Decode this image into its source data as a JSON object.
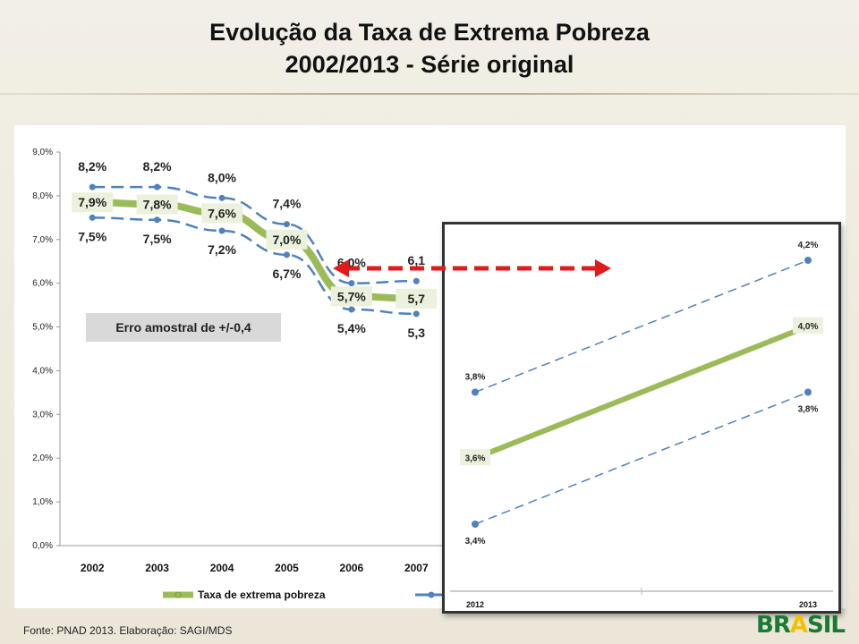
{
  "slide": {
    "title_line1": "Evolução da Taxa de Extrema Pobreza",
    "title_line2": "2002/2013 - Série original",
    "source": "Fonte: PNAD 2013. Elaboração: SAGI/MDS",
    "logo_text": "BRASIL"
  },
  "colors": {
    "main_series": "#9bbb59",
    "bounds_series": "#4f81bd",
    "arrow": "#e01b1b",
    "label_box": "#ebf1dd"
  },
  "chart_data": [
    {
      "type": "line",
      "x": [
        "2002",
        "2003",
        "2004",
        "2005",
        "2006",
        "2007"
      ],
      "ylim": [
        0,
        9
      ],
      "yticks": [
        "0,0%",
        "1,0%",
        "2,0%",
        "3,0%",
        "4,0%",
        "5,0%",
        "6,0%",
        "7,0%",
        "8,0%",
        "9,0%"
      ],
      "grid": false,
      "legend_position": "bottom",
      "series": [
        {
          "name": "Taxa de extrema pobreza",
          "values": [
            7.85,
            7.8,
            7.6,
            7.0,
            5.7,
            5.65
          ],
          "labels": [
            "7,9%",
            "7,8%",
            "7,6%",
            "7,0%",
            "5,7%",
            "5,7"
          ]
        },
        {
          "values": [
            8.2,
            8.2,
            7.95,
            7.35,
            6.0,
            6.05
          ],
          "labels": [
            "8,2%",
            "8,2%",
            "8,0%",
            "7,4%",
            "6,0%",
            "6,1"
          ]
        },
        {
          "values": [
            7.5,
            7.45,
            7.2,
            6.65,
            5.4,
            5.3
          ],
          "labels": [
            "7,5%",
            "7,5%",
            "7,2%",
            "6,7%",
            "5,4%",
            "5,3"
          ]
        }
      ],
      "annotation": "Erro amostral de +/-0,4"
    },
    {
      "type": "line",
      "x": [
        "2012",
        "2013"
      ],
      "series": [
        {
          "values": [
            3.6,
            4.0
          ],
          "labels": [
            "3,6%",
            "4,0%"
          ]
        },
        {
          "values": [
            3.8,
            4.2
          ],
          "labels": [
            "3,8%",
            "4,2%"
          ]
        },
        {
          "values": [
            3.4,
            3.8
          ],
          "labels": [
            "3,4%",
            "3,8%"
          ]
        }
      ]
    }
  ]
}
